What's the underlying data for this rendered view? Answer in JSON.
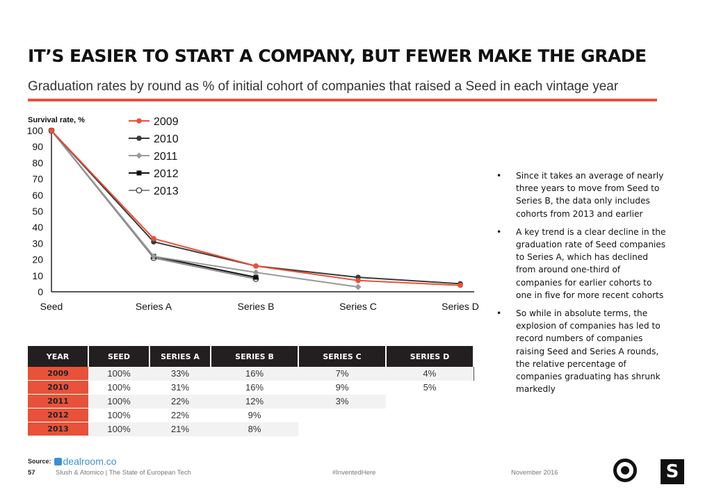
{
  "page": {
    "title": "IT’S EASIER TO START A COMPANY, BUT FEWER MAKE THE GRADE",
    "subtitle": "Graduation rates by round as % of initial cohort of companies that raised a Seed in each vintage year",
    "accent_color": "#e9513a"
  },
  "chart_data": {
    "type": "line",
    "ylabel": "Survival rate, %",
    "xlabel": "",
    "categories": [
      "Seed",
      "Series A",
      "Series B",
      "Series C",
      "Series D"
    ],
    "y_ticks": [
      "0",
      "10",
      "20",
      "30",
      "40",
      "50",
      "60",
      "70",
      "80",
      "90",
      "100"
    ],
    "ylim": [
      0,
      100
    ],
    "grid": false,
    "legend_position": "top-left",
    "series": [
      {
        "name": "2009",
        "values": [
          100,
          33,
          16,
          7,
          4
        ],
        "color": "#e9513a",
        "marker": "circle-filled"
      },
      {
        "name": "2010",
        "values": [
          100,
          31,
          16,
          9,
          5
        ],
        "color": "#3a3a3a",
        "marker": "circle-filled"
      },
      {
        "name": "2011",
        "values": [
          100,
          22,
          12,
          3,
          null
        ],
        "color": "#9a9a9a",
        "marker": "diamond"
      },
      {
        "name": "2012",
        "values": [
          100,
          22,
          9,
          null,
          null
        ],
        "color": "#111111",
        "marker": "square"
      },
      {
        "name": "2013",
        "values": [
          100,
          21,
          8,
          null,
          null
        ],
        "color": "#888888",
        "marker": "circle-open"
      }
    ]
  },
  "bullets": [
    "Since it takes an average of nearly three years to move from Seed to Series B, the data only includes cohorts from 2013 and earlier",
    "A key trend is a clear decline in the graduation rate of Seed companies to Series A, which has declined from around one-third of companies for earlier cohorts to one in five for more recent cohorts",
    "So while in absolute terms, the explosion of companies has led to record numbers of companies raising Seed and Series A rounds, the relative percentage of companies graduating has shrunk markedly"
  ],
  "bullet_symbol": "•",
  "table": {
    "headers": [
      "YEAR",
      "SEED",
      "SERIES A",
      "SERIES B",
      "SERIES C",
      "SERIES D"
    ],
    "rows": [
      {
        "year": "2009",
        "cells": [
          "100%",
          "33%",
          "16%",
          "7%",
          "4%"
        ]
      },
      {
        "year": "2010",
        "cells": [
          "100%",
          "31%",
          "16%",
          "9%",
          "5%"
        ]
      },
      {
        "year": "2011",
        "cells": [
          "100%",
          "22%",
          "12%",
          "3%",
          ""
        ]
      },
      {
        "year": "2012",
        "cells": [
          "100%",
          "22%",
          "9%",
          "",
          ""
        ]
      },
      {
        "year": "2013",
        "cells": [
          "100%",
          "21%",
          "8%",
          "",
          ""
        ]
      }
    ]
  },
  "source": {
    "label": "Source:",
    "brand": "dealroom.co"
  },
  "footer": {
    "page_number": "57",
    "publication": "Slush & Atomico  |  The State of European Tech",
    "hashtag": "#InventedHere",
    "date": "November 2016"
  },
  "logos": {
    "right_logo_glyph": "S"
  }
}
